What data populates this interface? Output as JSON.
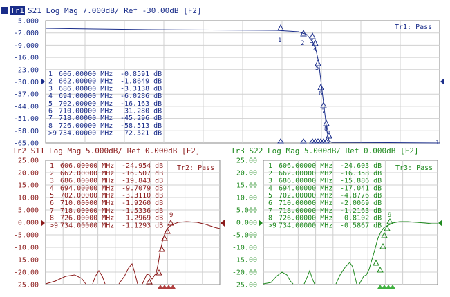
{
  "tr1": {
    "tag": "Tr1",
    "header": "S21 Log Mag 7.000dB/ Ref -30.00dB [F2]",
    "status": "Tr1: Pass",
    "color": "#1a2d8a",
    "ticks": [
      "-2.000",
      "-9.000",
      "-16.00",
      "-23.00",
      "-30.00",
      "-37.00",
      "-44.00",
      "-51.00",
      "-58.00",
      "-65.00"
    ],
    "ticks_top": "5.000",
    "markers": [
      {
        "n": "1",
        "freq": "606.00000 MHz",
        "val": "-0.8591 dB"
      },
      {
        "n": "2",
        "freq": "662.00000 MHz",
        "val": "-1.8649 dB"
      },
      {
        "n": "3",
        "freq": "686.00000 MHz",
        "val": "-3.3138 dB"
      },
      {
        "n": "4",
        "freq": "694.00000 MHz",
        "val": "-6.0286 dB"
      },
      {
        "n": "5",
        "freq": "702.00000 MHz",
        "val": "-16.163 dB"
      },
      {
        "n": "6",
        "freq": "710.00000 MHz",
        "val": "-31.280 dB"
      },
      {
        "n": "7",
        "freq": "718.00000 MHz",
        "val": "-45.296 dB"
      },
      {
        "n": "8",
        "freq": "726.00000 MHz",
        "val": "-58.513 dB"
      },
      {
        "n": ">9",
        "freq": "734.00000 MHz",
        "val": "-72.521 dB"
      }
    ]
  },
  "tr2": {
    "header": "Tr2 S11 Log Mag 5.000dB/ Ref 0.000dB [F2]",
    "status": "Tr2: Pass",
    "color": "#8b1a1a",
    "ticks": [
      "25.00",
      "20.00",
      "15.00",
      "10.00",
      "5.000",
      "0.000",
      "-5.000",
      "-10.00",
      "-15.00",
      "-20.00",
      "-25.00"
    ],
    "markers": [
      {
        "n": "1",
        "freq": "606.00000 MHz",
        "val": "-24.954 dB"
      },
      {
        "n": "2",
        "freq": "662.00000 MHz",
        "val": "-16.507 dB"
      },
      {
        "n": "3",
        "freq": "686.00000 MHz",
        "val": "-19.843 dB"
      },
      {
        "n": "4",
        "freq": "694.00000 MHz",
        "val": "-9.7079 dB"
      },
      {
        "n": "5",
        "freq": "702.00000 MHz",
        "val": "-3.3110 dB"
      },
      {
        "n": "6",
        "freq": "710.00000 MHz",
        "val": "-1.9260 dB"
      },
      {
        "n": "7",
        "freq": "718.00000 MHz",
        "val": "-1.5336 dB"
      },
      {
        "n": "8",
        "freq": "726.00000 MHz",
        "val": "-1.2969 dB"
      },
      {
        "n": ">9",
        "freq": "734.00000 MHz",
        "val": "-1.1293 dB"
      }
    ]
  },
  "tr3": {
    "header": "Tr3 S22 Log Mag 5.000dB/ Ref 0.000dB [F2]",
    "status": "Tr3: Pass",
    "color": "#1f8a1f",
    "ticks": [
      "25.00",
      "20.00",
      "15.00",
      "10.00",
      "5.000",
      "0.000",
      "-5.000",
      "-10.00",
      "-15.00",
      "-20.00",
      "-25.00"
    ],
    "markers": [
      {
        "n": "1",
        "freq": "606.00000 MHz",
        "val": "-24.603 dB"
      },
      {
        "n": "2",
        "freq": "662.00000 MHz",
        "val": "-16.358 dB"
      },
      {
        "n": "3",
        "freq": "686.00000 MHz",
        "val": "-15.886 dB"
      },
      {
        "n": "4",
        "freq": "694.00000 MHz",
        "val": "-17.041 dB"
      },
      {
        "n": "5",
        "freq": "702.00000 MHz",
        "val": "-4.8776 dB"
      },
      {
        "n": "6",
        "freq": "710.00000 MHz",
        "val": "-2.0069 dB"
      },
      {
        "n": "7",
        "freq": "718.00000 MHz",
        "val": "-1.2163 dB"
      },
      {
        "n": "8",
        "freq": "726.00000 MHz",
        "val": "-0.8102 dB"
      },
      {
        "n": ">9",
        "freq": "734.00000 MHz",
        "val": "-0.5867 dB"
      }
    ]
  }
}
